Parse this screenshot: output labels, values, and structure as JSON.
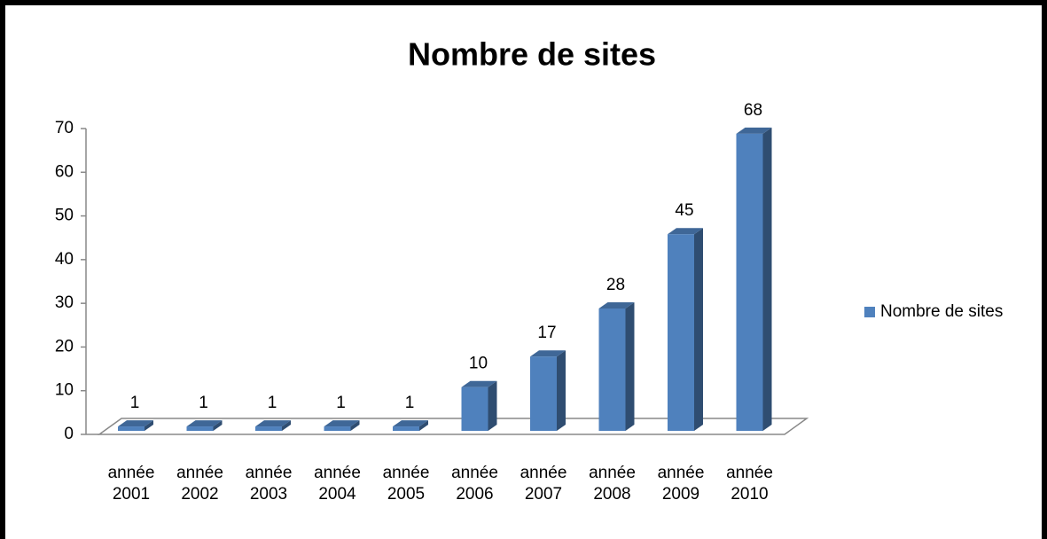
{
  "chart_data": {
    "type": "bar3d",
    "title": "Nombre de sites",
    "categories": [
      "année 2001",
      "année 2002",
      "année 2003",
      "année 2004",
      "année 2005",
      "année 2006",
      "année 2007",
      "année 2008",
      "année 2009",
      "année 2010"
    ],
    "series": [
      {
        "name": "Nombre de sites",
        "color": "#4f81bd",
        "values": [
          1,
          1,
          1,
          1,
          1,
          10,
          17,
          28,
          45,
          68
        ]
      }
    ],
    "ylim": [
      0,
      70
    ],
    "yticks": [
      0,
      10,
      20,
      30,
      40,
      50,
      60,
      70
    ],
    "grid": false,
    "legend": "right"
  }
}
